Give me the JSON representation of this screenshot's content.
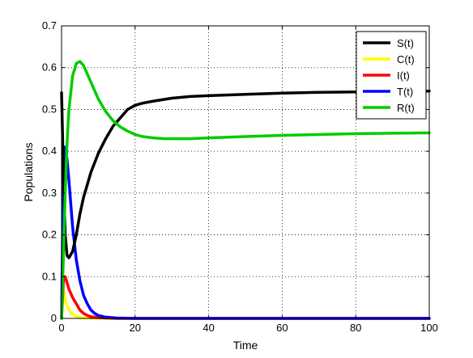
{
  "chart_data": {
    "type": "line",
    "title": "",
    "xlabel": "Time",
    "ylabel": "Populations",
    "xlim": [
      0,
      100
    ],
    "ylim": [
      0,
      0.7
    ],
    "xticks": [
      0,
      20,
      40,
      60,
      80,
      100
    ],
    "yticks": [
      0,
      0.1,
      0.2,
      0.3,
      0.4,
      0.5,
      0.6,
      0.7
    ],
    "grid": true,
    "legend_position": "top-right",
    "series": [
      {
        "name": "S(t)",
        "color": "#000000",
        "x": [
          0,
          0.5,
          1,
          1.5,
          2,
          3,
          4,
          5,
          6,
          7,
          8,
          10,
          12,
          14,
          16,
          18,
          20,
          22,
          25,
          30,
          35,
          40,
          50,
          60,
          70,
          80,
          90,
          100
        ],
        "y": [
          0.54,
          0.35,
          0.2,
          0.15,
          0.145,
          0.16,
          0.2,
          0.25,
          0.29,
          0.32,
          0.35,
          0.395,
          0.43,
          0.46,
          0.48,
          0.5,
          0.51,
          0.515,
          0.52,
          0.527,
          0.531,
          0.533,
          0.536,
          0.539,
          0.541,
          0.542,
          0.543,
          0.544
        ]
      },
      {
        "name": "C(t)",
        "color": "#ffff00",
        "x": [
          0,
          0.3,
          0.7,
          1,
          1.5,
          2,
          3,
          4,
          5,
          7,
          10,
          15,
          20,
          100
        ],
        "y": [
          0.0,
          0.07,
          0.06,
          0.045,
          0.03,
          0.02,
          0.01,
          0.005,
          0.002,
          0.001,
          0.0,
          0.0,
          0.0,
          0.0
        ]
      },
      {
        "name": "I(t)",
        "color": "#ff0000",
        "x": [
          0,
          0.5,
          1,
          1.5,
          2,
          3,
          4,
          5,
          6,
          7,
          8,
          10,
          12,
          15,
          20,
          100
        ],
        "y": [
          0.0,
          0.09,
          0.1,
          0.085,
          0.07,
          0.05,
          0.035,
          0.02,
          0.012,
          0.007,
          0.004,
          0.002,
          0.001,
          0.0,
          0.0,
          0.0
        ]
      },
      {
        "name": "T(t)",
        "color": "#0000ff",
        "x": [
          0,
          0.5,
          1,
          1.5,
          2,
          3,
          4,
          5,
          6,
          7,
          8,
          9,
          10,
          12,
          15,
          20,
          30,
          100
        ],
        "y": [
          0.0,
          0.35,
          0.41,
          0.38,
          0.33,
          0.22,
          0.14,
          0.09,
          0.055,
          0.035,
          0.02,
          0.012,
          0.007,
          0.003,
          0.001,
          0.0,
          0.0,
          0.0
        ]
      },
      {
        "name": "R(t)",
        "color": "#00cc00",
        "x": [
          0,
          0.5,
          1,
          1.5,
          2,
          3,
          4,
          5,
          6,
          7,
          8,
          10,
          12,
          14,
          16,
          18,
          20,
          22,
          25,
          28,
          30,
          35,
          40,
          50,
          60,
          70,
          80,
          90,
          100
        ],
        "y": [
          0.0,
          0.15,
          0.3,
          0.42,
          0.5,
          0.58,
          0.61,
          0.615,
          0.605,
          0.585,
          0.565,
          0.525,
          0.495,
          0.473,
          0.458,
          0.448,
          0.44,
          0.435,
          0.432,
          0.43,
          0.43,
          0.43,
          0.432,
          0.435,
          0.438,
          0.44,
          0.442,
          0.443,
          0.444
        ]
      }
    ]
  }
}
